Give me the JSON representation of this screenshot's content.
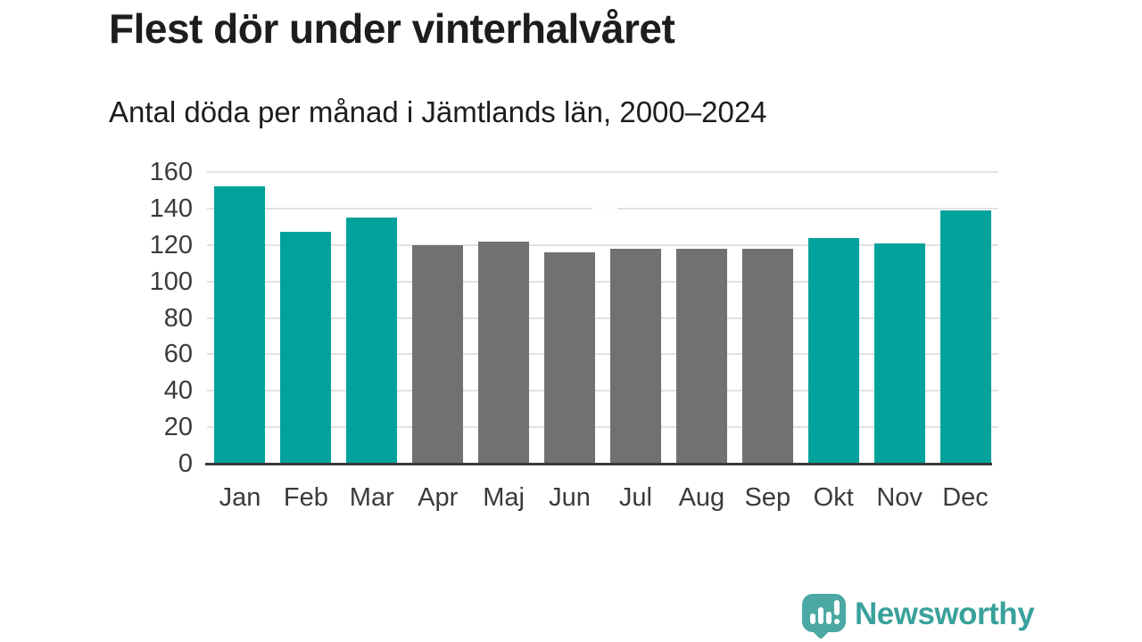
{
  "page": {
    "title": "Flest dör under vinterhalvåret",
    "subtitle": "Antal döda per månad i Jämtlands län, 2000–2024"
  },
  "chart_data": {
    "type": "bar",
    "title": "Flest dör under vinterhalvåret",
    "subtitle": "Antal döda per månad i Jämtlands län, 2000–2024",
    "categories": [
      "Jan",
      "Feb",
      "Mar",
      "Apr",
      "Maj",
      "Jun",
      "Jul",
      "Aug",
      "Sep",
      "Okt",
      "Nov",
      "Dec"
    ],
    "values": [
      152,
      127,
      135,
      120,
      122,
      116,
      118,
      118,
      118,
      124,
      121,
      139
    ],
    "bar_colors": [
      "#00a29b",
      "#00a29b",
      "#00a29b",
      "#717174",
      "#717174",
      "#717174",
      "#717174",
      "#717174",
      "#717174",
      "#00a29b",
      "#00a29b",
      "#00a29b"
    ],
    "xlabel": "",
    "ylabel": "",
    "ylim": [
      0,
      160
    ],
    "yticks": [
      0,
      20,
      40,
      60,
      80,
      100,
      120,
      140,
      160
    ],
    "grid": true,
    "legend_position": "none"
  },
  "branding": {
    "logo_text": "Newsworthy",
    "logo_icon": "newsworthy-chart-speech-bubble-icon",
    "logo_bubble_color": "#4ba8a2",
    "logo_text_color": "#3aa19b"
  },
  "colors": {
    "bar_teal": "#00a29b",
    "bar_gray": "#717174",
    "gridline": "#e2e2e2",
    "axis_line": "#3a3a3a",
    "title_text": "#1d1d1b",
    "tick_text": "#3b3b3b",
    "background": "#ffffff"
  }
}
